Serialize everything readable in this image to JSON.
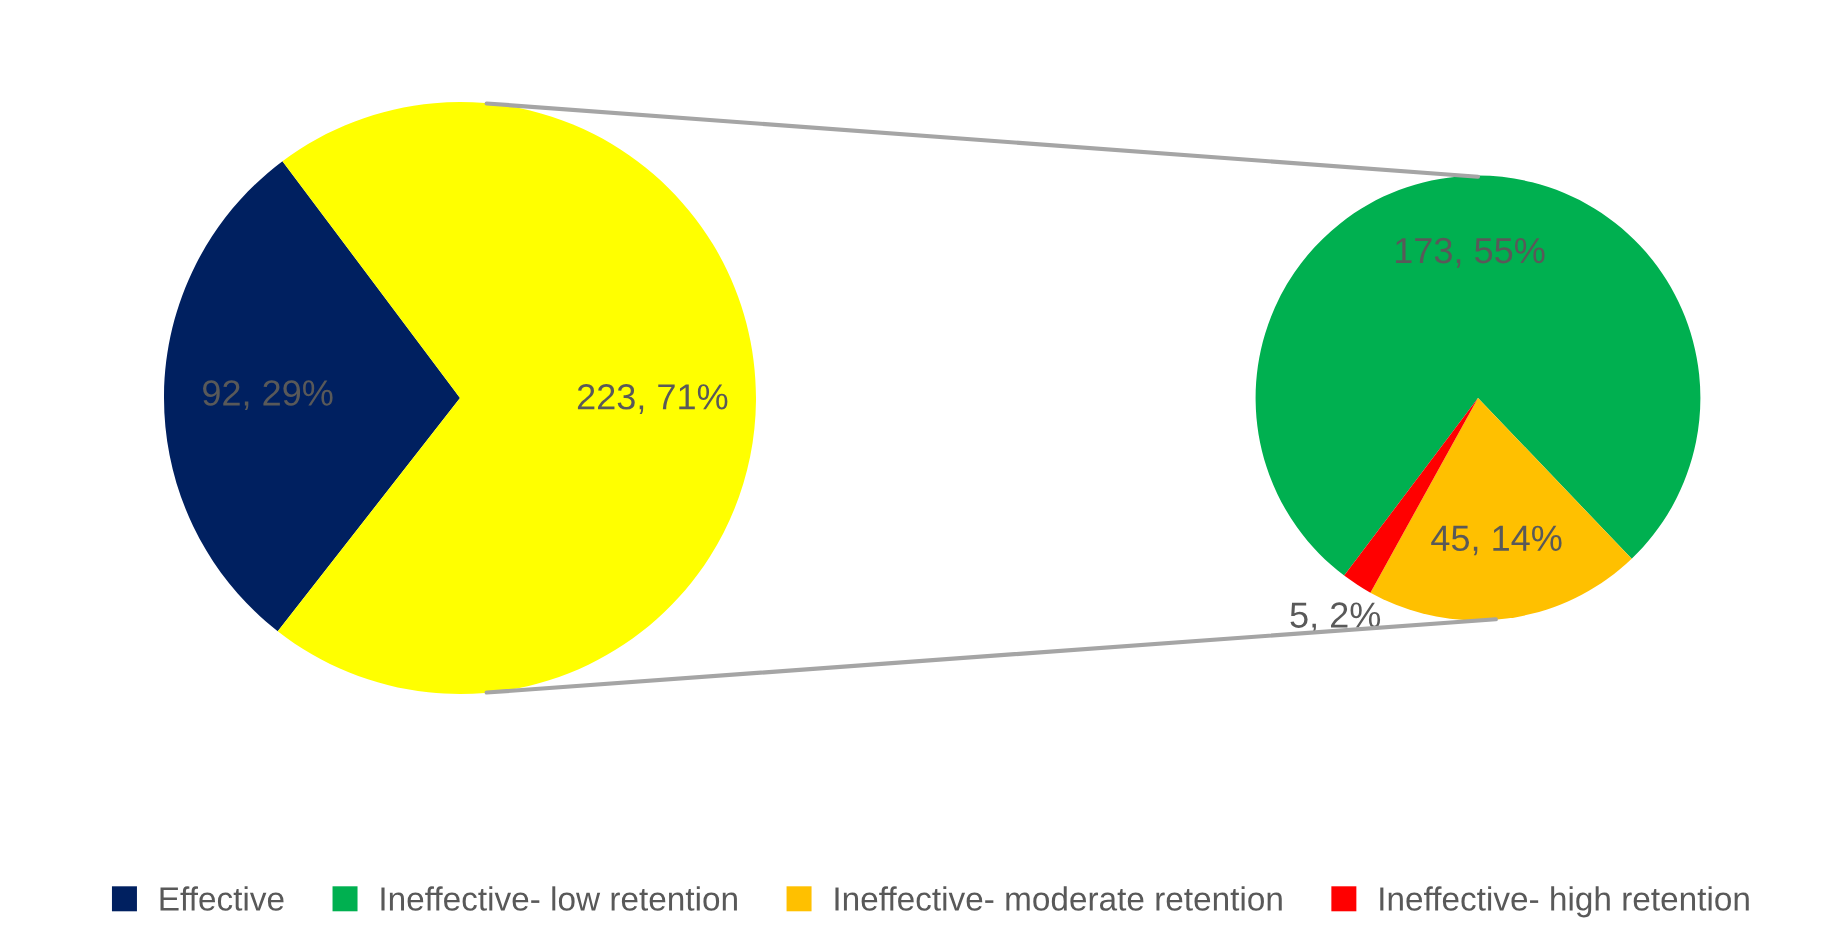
{
  "chart_data": [
    {
      "type": "pie",
      "categories": [
        "Effective",
        null
      ],
      "values": [
        92,
        223
      ],
      "colors": [
        "#002060",
        "#ffff00"
      ],
      "value_labels": [
        "92, 29%",
        "223, 71%"
      ],
      "legend": "bottom"
    },
    {
      "type": "pie",
      "categories": [
        "Ineffective- low retention",
        "Ineffective- moderate retention",
        "Ineffective- high retention"
      ],
      "values": [
        173,
        45,
        5
      ],
      "colors": [
        "#00b050",
        "#ffc000",
        "#ff0000"
      ],
      "value_labels": [
        "173, 55%",
        "45, 14%",
        "5, 2%"
      ],
      "legend": "bottom"
    }
  ]
}
